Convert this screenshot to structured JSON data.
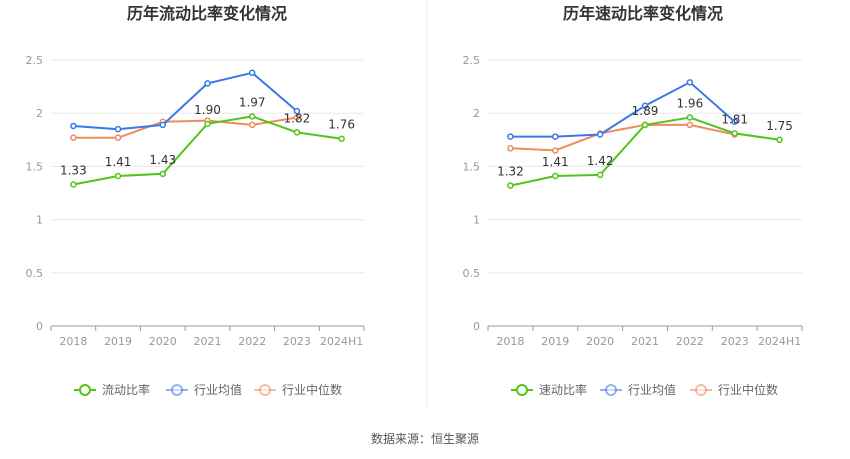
{
  "source": "数据来源：恒生聚源",
  "colors": {
    "company": "#52c41a",
    "avg": "#3b78e7",
    "median": "#f08a5d",
    "grid": "#e8e8e8",
    "axis": "#999999",
    "divider": "#eeeeee"
  },
  "chart_data": [
    {
      "type": "line",
      "title": "历年流动比率变化情况",
      "xlabel": "",
      "ylabel": "",
      "categories": [
        "2018",
        "2019",
        "2020",
        "2021",
        "2022",
        "2023",
        "2024H1"
      ],
      "ylim": [
        0,
        2.5
      ],
      "yticks": [
        "0",
        "0.5",
        "1",
        "1.5",
        "2",
        "2.5"
      ],
      "grid": true,
      "legend_position": "bottom",
      "series": [
        {
          "name": "流动比率",
          "color": "#52c41a",
          "labeled": true,
          "values": [
            1.33,
            1.41,
            1.43,
            1.9,
            1.97,
            1.82,
            1.76
          ],
          "labels": [
            "1.33",
            "1.41",
            "1.43",
            "1.90",
            "1.97",
            "1.82",
            "1.76"
          ]
        },
        {
          "name": "行业均值",
          "color": "#3b78e7",
          "values": [
            1.88,
            1.85,
            1.89,
            2.28,
            2.38,
            2.02,
            null
          ]
        },
        {
          "name": "行业中位数",
          "color": "#f08a5d",
          "values": [
            1.77,
            1.77,
            1.92,
            1.93,
            1.89,
            1.96,
            null
          ]
        }
      ]
    },
    {
      "type": "line",
      "title": "历年速动比率变化情况",
      "xlabel": "",
      "ylabel": "",
      "categories": [
        "2018",
        "2019",
        "2020",
        "2021",
        "2022",
        "2023",
        "2024H1"
      ],
      "ylim": [
        0,
        2.5
      ],
      "yticks": [
        "0",
        "0.5",
        "1",
        "1.5",
        "2",
        "2.5"
      ],
      "grid": true,
      "legend_position": "bottom",
      "series": [
        {
          "name": "速动比率",
          "color": "#52c41a",
          "labeled": true,
          "values": [
            1.32,
            1.41,
            1.42,
            1.89,
            1.96,
            1.81,
            1.75
          ],
          "labels": [
            "1.32",
            "1.41",
            "1.42",
            "1.89",
            "1.96",
            "1.81",
            "1.75"
          ]
        },
        {
          "name": "行业均值",
          "color": "#3b78e7",
          "values": [
            1.78,
            1.78,
            1.8,
            2.07,
            2.29,
            1.92,
            null
          ]
        },
        {
          "name": "行业中位数",
          "color": "#f08a5d",
          "values": [
            1.67,
            1.65,
            1.81,
            1.89,
            1.89,
            1.8,
            null
          ]
        }
      ]
    }
  ]
}
